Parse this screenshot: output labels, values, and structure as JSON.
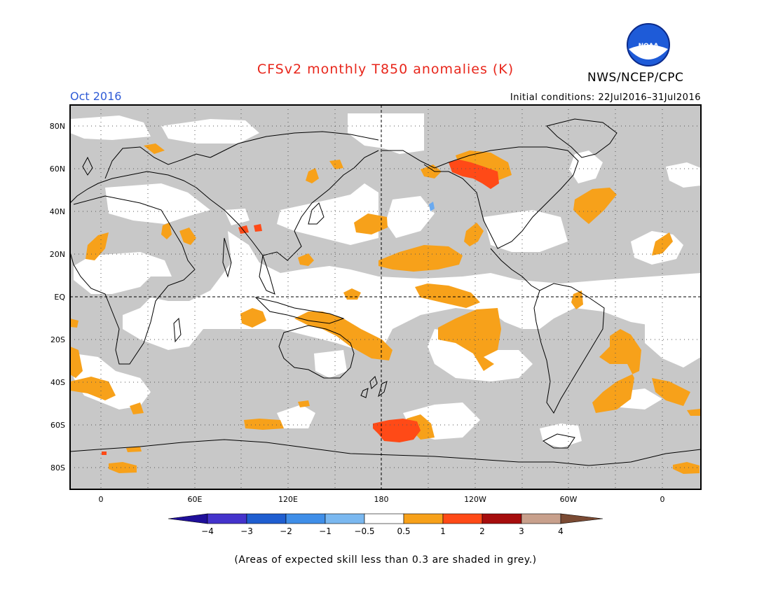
{
  "header": {
    "title": "CFSv2 monthly T850 anomalies (K)",
    "org": "NWS/NCEP/CPC",
    "month": "Oct 2016",
    "initial_conditions": "Initial conditions: 22Jul2016–31Jul2016",
    "logo_text": "NOAA"
  },
  "map": {
    "lat_labels": [
      "80N",
      "60N",
      "40N",
      "20N",
      "EQ",
      "20S",
      "40S",
      "60S",
      "80S"
    ],
    "lon_labels": [
      "0",
      "60E",
      "120E",
      "180",
      "120W",
      "60W",
      "0"
    ],
    "colors": {
      "skill_grey": "#c8c8c8",
      "anom_0_5_1": "#f7a11a",
      "anom_1_2": "#ff4a17",
      "neg_small": "#6aaaf0"
    }
  },
  "colorbar": {
    "labels": [
      "−4",
      "−3",
      "−2",
      "−1",
      "−0.5",
      "0.5",
      "1",
      "2",
      "3",
      "4"
    ],
    "colors": [
      "#1f0f9a",
      "#4433cc",
      "#1f5ed0",
      "#3f8ee8",
      "#7ab8f0",
      "#ffffff",
      "#f7a11a",
      "#ff4a17",
      "#a60d0d",
      "#c8a08c",
      "#7a4a33"
    ]
  },
  "footnote": "(Areas of expected skill less than 0.3 are shaded in grey.)"
}
